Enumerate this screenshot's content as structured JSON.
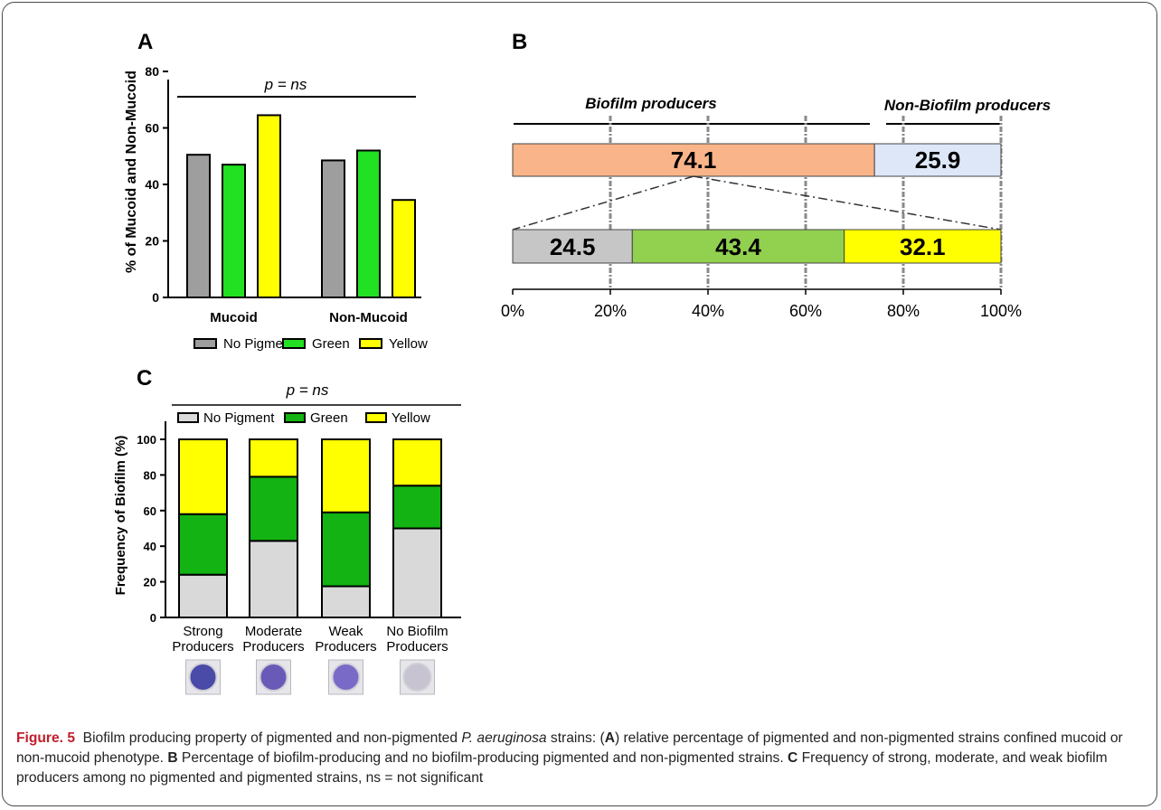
{
  "colors": {
    "no_pigment_a": "#9e9e9e",
    "green_a": "#22e022",
    "yellow": "#ffff00",
    "biofilm": "#f9b48a",
    "non_biofilm": "#dde7f8",
    "b_no_pigment": "#c6c6c6",
    "b_green": "#92d050",
    "no_pigment_c": "#d9d9d9",
    "green_c": "#12b312",
    "caption_lead": "#c01e2c",
    "well_strong": "#4a4aa8",
    "well_moderate": "#6a5ab8",
    "well_weak": "#7a6ac8",
    "well_none": "#c8c3d0"
  },
  "chart_data": [
    {
      "panel": "A",
      "type": "bar",
      "ylabel": "% of Mucoid and Non-Mucoid",
      "annotation": "p = ns",
      "categories": [
        "Mucoid",
        "Non-Mucoid"
      ],
      "yticks": [
        "0",
        "20",
        "40",
        "60",
        "80"
      ],
      "ylim": [
        0,
        80
      ],
      "series": [
        {
          "name": "No Pigment",
          "values": [
            50.5,
            48.5
          ]
        },
        {
          "name": "Green",
          "values": [
            47,
            52
          ]
        },
        {
          "name": "Yellow",
          "values": [
            64.5,
            34.5
          ]
        }
      ],
      "legend": "bottom"
    },
    {
      "panel": "B",
      "type": "bar",
      "orientation": "horizontal-stacked",
      "group_labels": [
        "Biofilm producers",
        "Non-Biofilm producers"
      ],
      "top_bar": {
        "segments": [
          {
            "label": "74.1",
            "value": 74.1
          },
          {
            "label": "25.9",
            "value": 25.9
          }
        ]
      },
      "bottom_bar": {
        "segments": [
          {
            "label": "24.5",
            "value": 24.5
          },
          {
            "label": "43.4",
            "value": 43.4
          },
          {
            "label": "32.1",
            "value": 32.1
          }
        ]
      },
      "xticks": [
        "0%",
        "20%",
        "40%",
        "60%",
        "80%",
        "100%"
      ],
      "xlim": [
        0,
        100
      ]
    },
    {
      "panel": "C",
      "type": "bar",
      "stacked": true,
      "ylabel": "Frequency of Biofilm (%)",
      "annotation": "p = ns",
      "categories": [
        [
          "Strong",
          "Producers"
        ],
        [
          "Moderate",
          "Producers"
        ],
        [
          "Weak",
          "Producers"
        ],
        [
          "No Biofilm",
          "Producers"
        ]
      ],
      "yticks": [
        "0",
        "20",
        "40",
        "60",
        "80",
        "100"
      ],
      "ylim": [
        0,
        100
      ],
      "series": [
        {
          "name": "No Pigment",
          "values": [
            24,
            43,
            17.5,
            50
          ]
        },
        {
          "name": "Green",
          "values": [
            34,
            36,
            41.5,
            24
          ]
        },
        {
          "name": "Yellow",
          "values": [
            42,
            21,
            41,
            26
          ]
        }
      ],
      "legend": "top"
    }
  ],
  "caption": {
    "figure_label": "Figure. 5",
    "part1": "Biofilm producing property of pigmented and non-pigmented ",
    "species": "P. aeruginosa",
    "part2": " strains: (",
    "a": "A",
    "part3": ") relative percentage of pigmented and non-pigmented strains confined mucoid or non-mucoid phenotype. ",
    "b": "B",
    "part4": " Percentage of biofilm-producing and no biofilm-producing pigmented and non-pigmented strains. ",
    "c": "C",
    "part5": " Frequency of strong, moderate, and weak biofilm producers among no pigmented and pigmented strains, ns = not significant"
  }
}
